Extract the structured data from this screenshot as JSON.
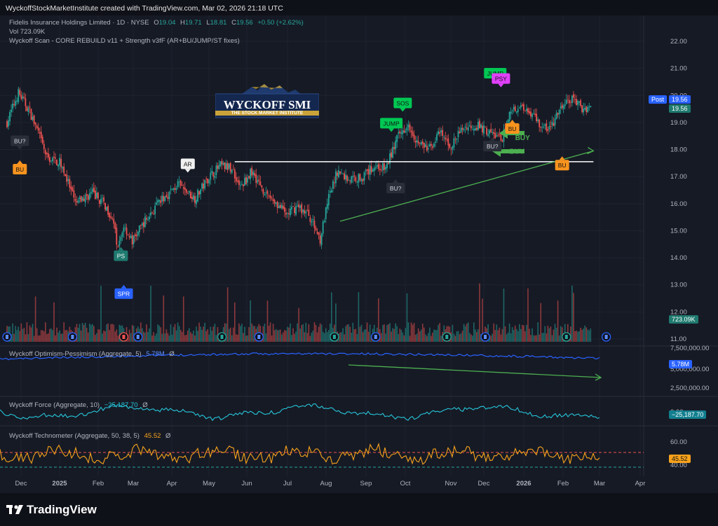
{
  "header": {
    "caption": "WyckoffStockMarketInstitute created with TradingView.com, Mar 02, 2026 21:18 UTC",
    "symbol_line": "Fidelis Insurance Holdings Limited · 1D · NYSE",
    "ohlc": {
      "o": "19.04",
      "h": "19.71",
      "l": "18.81",
      "c": "19.56",
      "chg": "+0.50 (+2.62%)"
    },
    "o_label": "O",
    "h_label": "H",
    "l_label": "L",
    "c_label": "C",
    "vol_line": "Vol  723.09K",
    "indicator_line": "Wyckoff Scan - CORE REBUILD v11 + Strength v3fF (AR+BU/JUMP/ST fixes)"
  },
  "logo": {
    "title": "WYCKOFF SMI",
    "subtitle": "THE STOCK MARKET INSTITUTE"
  },
  "price_tags": {
    "post_label": "Post",
    "post_value": "19.56",
    "last_value": "19.56",
    "volume_value": "723.09K",
    "opt_value": "5.78M",
    "force_value": "−25,187.70",
    "tech_value": "45.52"
  },
  "panes": {
    "optimism": {
      "title": "Wyckoff Optimism-Pessimism (Aggregate, 5)",
      "value": "5.78M",
      "glyph": "Ø",
      "ticks": [
        "7,500,000.00",
        "5,000,000.00",
        "2,500,000.00"
      ]
    },
    "force": {
      "title": "Wyckoff Force (Aggregate, 10)",
      "value": "−25,187.70",
      "glyph": "Ø",
      "ticks": [
        "0.00"
      ]
    },
    "technometer": {
      "title": "Wyckoff Technometer (Aggregate, 50, 38, 5)",
      "value": "45.52",
      "glyph": "Ø",
      "ticks": [
        "60.00",
        "40.00"
      ]
    }
  },
  "colors": {
    "up": "#26a69a",
    "down": "#ef5350",
    "trend": "#4caf50",
    "opt": "#2962ff",
    "force": "#26c6da",
    "tech": "#f7a21b",
    "white": "#ffffff"
  },
  "footer": {
    "brand": "TradingView"
  },
  "chart_data": {
    "type": "candlestick",
    "x_ticks": [
      "Dec",
      "2025",
      "Feb",
      "Mar",
      "Apr",
      "May",
      "Jun",
      "Jul",
      "Aug",
      "Sep",
      "Oct",
      "Nov",
      "Dec",
      "2026",
      "Feb",
      "Mar",
      "Apr"
    ],
    "y_ticks": [
      22.0,
      21.0,
      20.0,
      19.0,
      18.0,
      17.0,
      16.0,
      15.0,
      14.0,
      13.0,
      12.0,
      11.0
    ],
    "ylim": [
      10.8,
      22.4
    ],
    "anchors": [
      [
        0,
        19.0
      ],
      [
        8,
        20.1
      ],
      [
        16,
        19.4
      ],
      [
        22,
        18.6
      ],
      [
        28,
        17.7
      ],
      [
        38,
        17.5
      ],
      [
        48,
        16.0
      ],
      [
        60,
        16.4
      ],
      [
        68,
        16.0
      ],
      [
        74,
        15.5
      ],
      [
        78,
        14.3
      ],
      [
        82,
        15.2
      ],
      [
        88,
        14.6
      ],
      [
        96,
        15.3
      ],
      [
        108,
        16.1
      ],
      [
        120,
        16.7
      ],
      [
        132,
        16.2
      ],
      [
        142,
        17.0
      ],
      [
        150,
        17.4
      ],
      [
        158,
        17.3
      ],
      [
        164,
        16.6
      ],
      [
        172,
        17.2
      ],
      [
        180,
        16.5
      ],
      [
        188,
        16.1
      ],
      [
        196,
        15.6
      ],
      [
        204,
        15.9
      ],
      [
        212,
        15.6
      ],
      [
        220,
        14.7
      ],
      [
        226,
        16.2
      ],
      [
        232,
        17.2
      ],
      [
        240,
        16.9
      ],
      [
        250,
        17.0
      ],
      [
        258,
        17.4
      ],
      [
        266,
        17.3
      ],
      [
        274,
        18.4
      ],
      [
        282,
        19.0
      ],
      [
        288,
        18.3
      ],
      [
        296,
        18.0
      ],
      [
        304,
        18.6
      ],
      [
        312,
        18.1
      ],
      [
        320,
        18.8
      ],
      [
        330,
        18.9
      ],
      [
        340,
        18.6
      ],
      [
        348,
        18.4
      ],
      [
        354,
        19.5
      ],
      [
        362,
        19.6
      ],
      [
        370,
        19.3
      ],
      [
        376,
        18.8
      ],
      [
        382,
        18.8
      ],
      [
        390,
        19.6
      ],
      [
        398,
        19.9
      ],
      [
        404,
        19.5
      ],
      [
        410,
        19.6
      ]
    ],
    "markers": [
      {
        "label": "BU?",
        "d": 9,
        "p": 18.0,
        "style": "dark",
        "dir": "down"
      },
      {
        "label": "BU",
        "d": 9,
        "p": 17.6,
        "style": "orange",
        "dir": "up"
      },
      {
        "label": "AR",
        "d": 127,
        "p": 17.15,
        "style": "white",
        "dir": "down"
      },
      {
        "label": "PS",
        "d": 80,
        "p": 14.4,
        "style": "teal",
        "dir": "up"
      },
      {
        "label": "SPR",
        "d": 82,
        "p": 13.0,
        "style": "blue",
        "dir": "up"
      },
      {
        "label": "JUMP",
        "d": 270,
        "p": 18.65,
        "style": "green",
        "dir": "down"
      },
      {
        "label": "SOS",
        "d": 278,
        "p": 19.4,
        "style": "green",
        "dir": "down"
      },
      {
        "label": "BU?",
        "d": 273,
        "p": 16.9,
        "style": "dark",
        "dir": "up"
      },
      {
        "label": "JUMP",
        "d": 343,
        "p": 20.5,
        "style": "green",
        "dir": "down"
      },
      {
        "label": "PSY",
        "d": 347,
        "p": 20.3,
        "style": "magenta",
        "dir": "down"
      },
      {
        "label": "BU",
        "d": 355,
        "p": 19.1,
        "style": "orange",
        "dir": "up"
      },
      {
        "label": "BU?",
        "d": 341,
        "p": 18.45,
        "style": "dark",
        "dir": "up"
      },
      {
        "label": "BU",
        "d": 390,
        "p": 17.75,
        "style": "orange",
        "dir": "up"
      }
    ],
    "support": {
      "from_day": 160,
      "to_day": 412,
      "price": 17.55
    },
    "trend": {
      "from": [
        234,
        15.35
      ],
      "to": [
        412,
        17.95
      ]
    },
    "buy_labels": [
      {
        "text": "BUY",
        "d": 357,
        "p": 18.35
      },
      {
        "text": "BUY",
        "d": 353,
        "p": 17.85
      }
    ],
    "earnings_days": [
      82,
      151,
      230,
      309,
      393
    ],
    "dividend_days": [
      0,
      46,
      92,
      177,
      259,
      336,
      421
    ]
  }
}
